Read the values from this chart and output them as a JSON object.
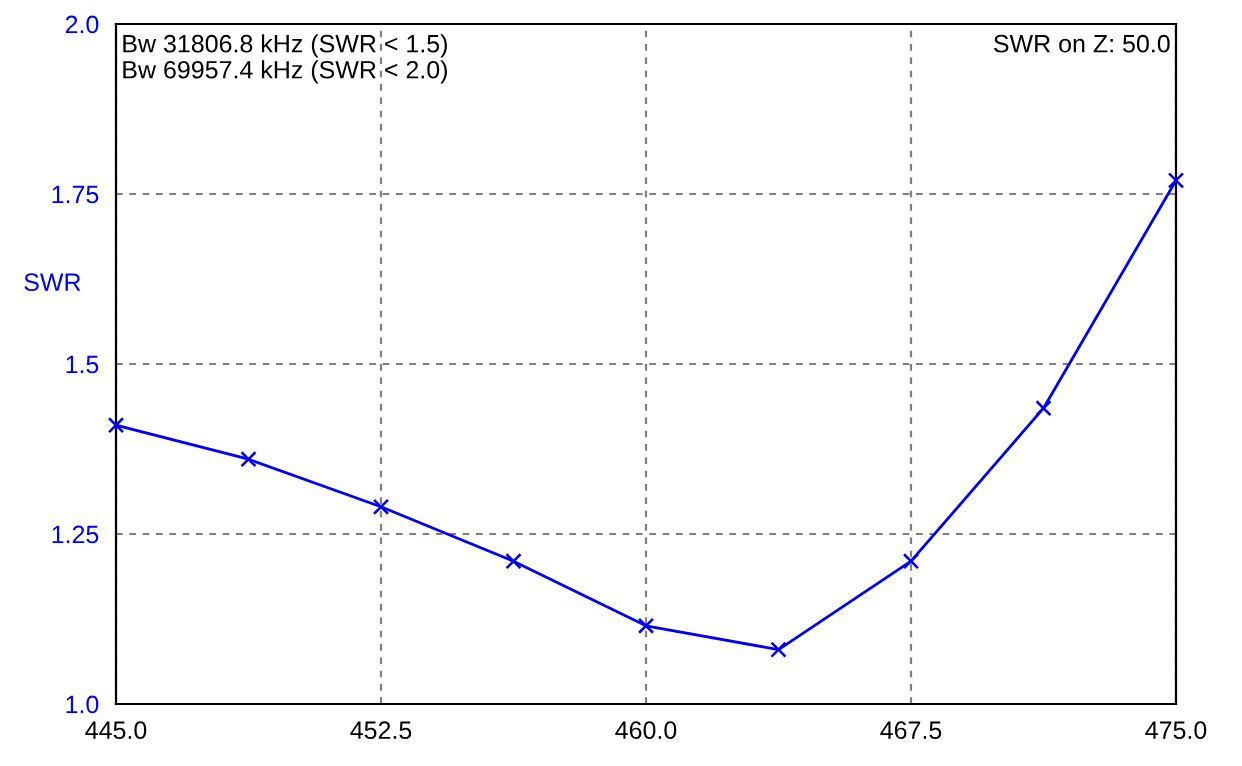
{
  "chart_data": {
    "type": "line",
    "ylabel": "SWR",
    "annotations": [
      "Bw 31806.8 kHz (SWR < 1.5)\nBw 69957.4 kHz (SWR < 2.0)",
      "SWR on Z: 50.0"
    ],
    "x": [
      445,
      448.75,
      452.5,
      456.25,
      460,
      463.75,
      467.5,
      471.25,
      475
    ],
    "series": [
      {
        "color": "#0000ff",
        "values": [
          1.41,
          1.36,
          1.29,
          1.21,
          1.115,
          1.08,
          1.21,
          1.435,
          1.77
        ]
      }
    ],
    "xlim": [
      445,
      475
    ],
    "ylim": [
      1.0,
      2.0
    ],
    "xticks": [
      {
        "value": 445,
        "label": "445.0"
      },
      {
        "value": 452.5,
        "label": "452.5"
      },
      {
        "value": 460,
        "label": "460.0"
      },
      {
        "value": 467.5,
        "label": "467.5"
      },
      {
        "value": 475,
        "label": "475.0"
      }
    ],
    "yticks": [
      {
        "value": 1.0,
        "label": "1.0"
      },
      {
        "value": 1.25,
        "label": "1.25"
      },
      {
        "value": 1.5,
        "label": "1.5"
      },
      {
        "value": 1.75,
        "label": "1.75"
      },
      {
        "value": 2.0,
        "label": "2.0"
      }
    ],
    "grid": true,
    "marker": "cross",
    "line_style": "solid",
    "legend": false
  }
}
